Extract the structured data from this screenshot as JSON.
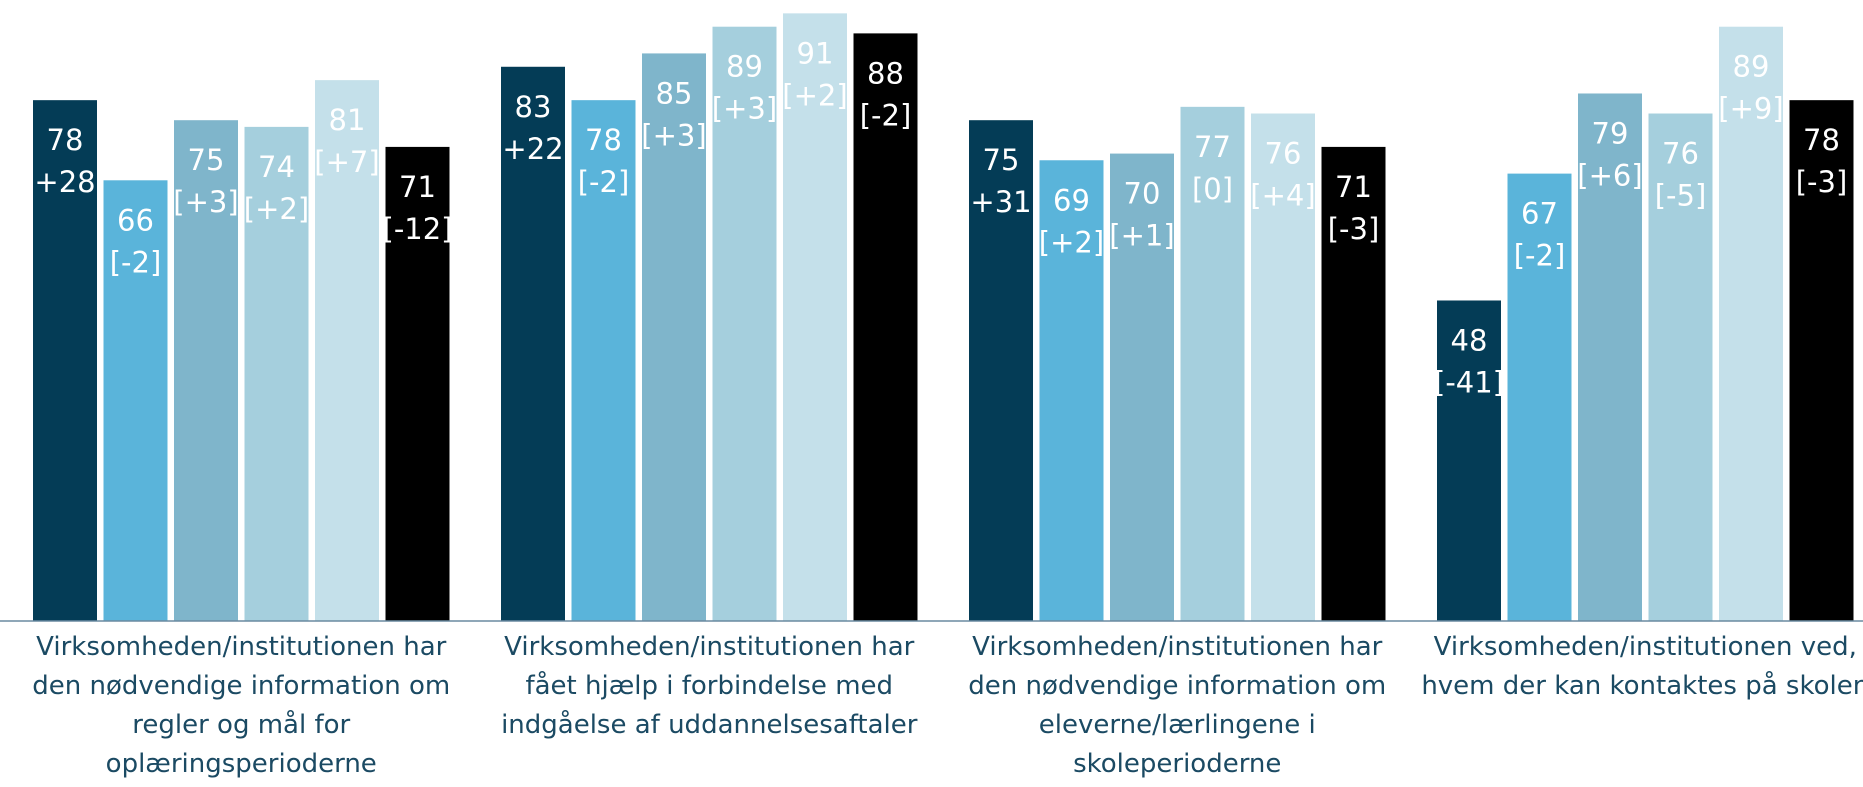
{
  "chart_data": {
    "type": "bar",
    "categories": [
      "Virksomheden/institutionen har den nødvendige information om regler og mål for oplæringsperioderne",
      "Virksomheden/institutionen har fået hjælp i forbindelse med indgåelse af uddannelsesaftaler",
      "Virksomheden/institutionen har den nødvendige information om eleverne/lærlingene i skoleperioderne",
      "Virksomheden/institutionen ved, hvem der kan kontaktes på skolen"
    ],
    "ylim": [
      0,
      93
    ],
    "series": [
      {
        "color": "#043c56",
        "values": [
          78,
          83,
          75,
          48
        ],
        "change_labels": [
          "[+28]",
          "[+22]",
          "[+31]",
          "[-41]"
        ]
      },
      {
        "color": "#5ab4da",
        "values": [
          66,
          78,
          69,
          67
        ],
        "change_labels": [
          "[-2]",
          "[-2]",
          "[+2]",
          "[-2]"
        ]
      },
      {
        "color": "#7fb5cb",
        "values": [
          75,
          85,
          70,
          79
        ],
        "change_labels": [
          "[+3]",
          "[+3]",
          "[+1]",
          "[+6]"
        ]
      },
      {
        "color": "#a5cfdd",
        "values": [
          74,
          89,
          77,
          76
        ],
        "change_labels": [
          "[+2]",
          "[+3]",
          "[0]",
          "[-5]"
        ]
      },
      {
        "color": "#c4e0ea",
        "values": [
          81,
          91,
          76,
          89
        ],
        "change_labels": [
          "[+7]",
          "[+2]",
          "[+4]",
          "[+9]"
        ]
      },
      {
        "color": "#000000",
        "values": [
          71,
          88,
          71,
          78
        ],
        "change_labels": [
          "[-12]",
          "[-2]",
          "[-3]",
          "[-3]"
        ]
      }
    ]
  }
}
